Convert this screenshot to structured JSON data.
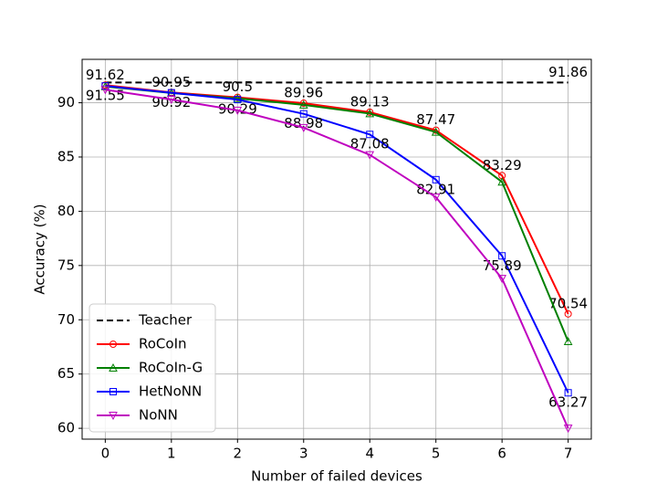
{
  "chart_data": {
    "type": "line",
    "xlabel": "Number of failed devices",
    "ylabel": "Accuracy (%)",
    "x": [
      0,
      1,
      2,
      3,
      4,
      5,
      6,
      7
    ],
    "xlim": [
      -0.35,
      7.35
    ],
    "ylim": [
      59,
      94
    ],
    "xticks": [
      0,
      1,
      2,
      3,
      4,
      5,
      6,
      7
    ],
    "yticks": [
      60,
      65,
      70,
      75,
      80,
      85,
      90
    ],
    "grid": true,
    "legend": "lower left",
    "series": [
      {
        "name": "Teacher",
        "color": "#000000",
        "dash": true,
        "marker": "none",
        "x": [
          0,
          7
        ],
        "values": [
          91.86,
          91.86
        ],
        "value_labels": [
          null,
          "91.86"
        ],
        "label_position": "above"
      },
      {
        "name": "RoCoIn",
        "color": "#ff0000",
        "marker": "circle",
        "values": [
          91.62,
          90.95,
          90.5,
          89.96,
          89.13,
          87.47,
          83.29,
          70.54
        ],
        "show_labels": true,
        "label_position": "above"
      },
      {
        "name": "RoCoIn-G",
        "color": "#008000",
        "marker": "triangle-up",
        "values": [
          91.5,
          90.9,
          90.4,
          89.8,
          89.0,
          87.3,
          82.7,
          68.0
        ]
      },
      {
        "name": "HetNoNN",
        "color": "#0000ff",
        "marker": "square",
        "values": [
          91.55,
          90.92,
          90.29,
          88.98,
          87.08,
          82.91,
          75.89,
          63.27
        ],
        "show_labels": true,
        "label_position": "below"
      },
      {
        "name": "NoNN",
        "color": "#bf00bf",
        "marker": "triangle-down",
        "values": [
          91.2,
          90.3,
          89.3,
          87.7,
          85.2,
          81.3,
          73.8,
          60.0
        ]
      }
    ]
  }
}
